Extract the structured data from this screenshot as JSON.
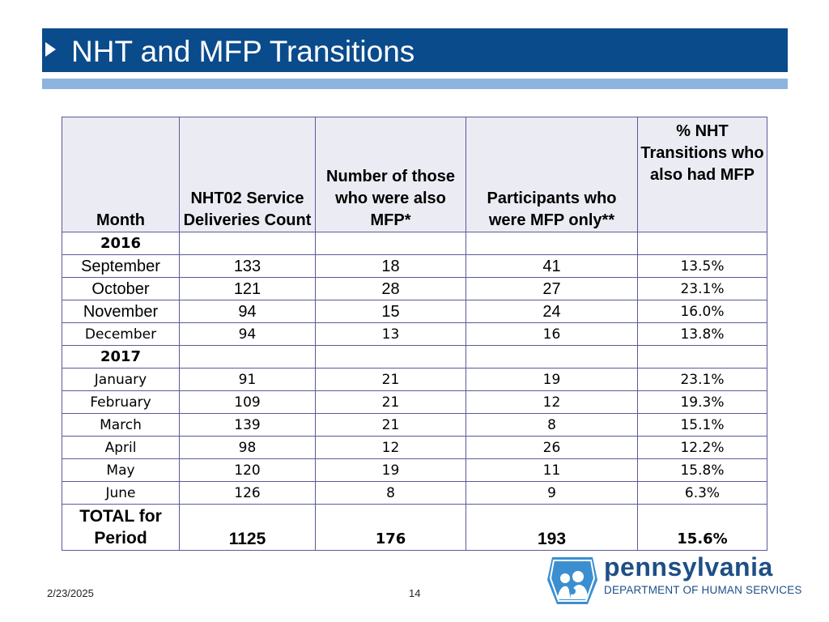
{
  "slide": {
    "title": "NHT and MFP Transitions",
    "date": "2/23/2025",
    "page_number": "14"
  },
  "table": {
    "headers": {
      "month": "Month",
      "nht02": "NHT02 Service Deliveries Count",
      "also_mfp": "Number of those who were also MFP*",
      "mfp_only": "Participants who were MFP only**",
      "pct": "% NHT Transitions who also had MFP"
    },
    "year_2016": "2016",
    "rows_2016": [
      {
        "month": "September",
        "nht02": "133",
        "also_mfp": "18",
        "mfp_only": "41",
        "pct": "13.5%"
      },
      {
        "month": "October",
        "nht02": "121",
        "also_mfp": "28",
        "mfp_only": "27",
        "pct": "23.1%"
      },
      {
        "month": "November",
        "nht02": "94",
        "also_mfp": "15",
        "mfp_only": "24",
        "pct": "16.0%"
      },
      {
        "month": "December",
        "nht02": "94",
        "also_mfp": "13",
        "mfp_only": "16",
        "pct": "13.8%"
      }
    ],
    "year_2017": "2017",
    "rows_2017": [
      {
        "month": "January",
        "nht02": "91",
        "also_mfp": "21",
        "mfp_only": "19",
        "pct": "23.1%"
      },
      {
        "month": "February",
        "nht02": "109",
        "also_mfp": "21",
        "mfp_only": "12",
        "pct": "19.3%"
      },
      {
        "month": "March",
        "nht02": "139",
        "also_mfp": "21",
        "mfp_only": "8",
        "pct": "15.1%"
      },
      {
        "month": "April",
        "nht02": "98",
        "also_mfp": "12",
        "mfp_only": "26",
        "pct": "12.2%"
      },
      {
        "month": "May",
        "nht02": "120",
        "also_mfp": "19",
        "mfp_only": "11",
        "pct": "15.8%"
      },
      {
        "month": "June",
        "nht02": "126",
        "also_mfp": "8",
        "mfp_only": "9",
        "pct": "6.3%"
      }
    ],
    "total": {
      "label": "TOTAL for Period",
      "nht02": "1125",
      "also_mfp": "176",
      "mfp_only": "193",
      "pct": "15.6%"
    }
  },
  "logo": {
    "name": "pennsylvania",
    "department": "DEPARTMENT OF HUMAN SERVICES"
  },
  "colors": {
    "title_bar": "#0a4b8c",
    "title_stripe": "#8db4e0",
    "table_border": "#5a5a9a",
    "header_fill": "#ebebf3",
    "logo_blue": "#1e4f86",
    "logo_mark_blue": "#3b8fd0"
  }
}
